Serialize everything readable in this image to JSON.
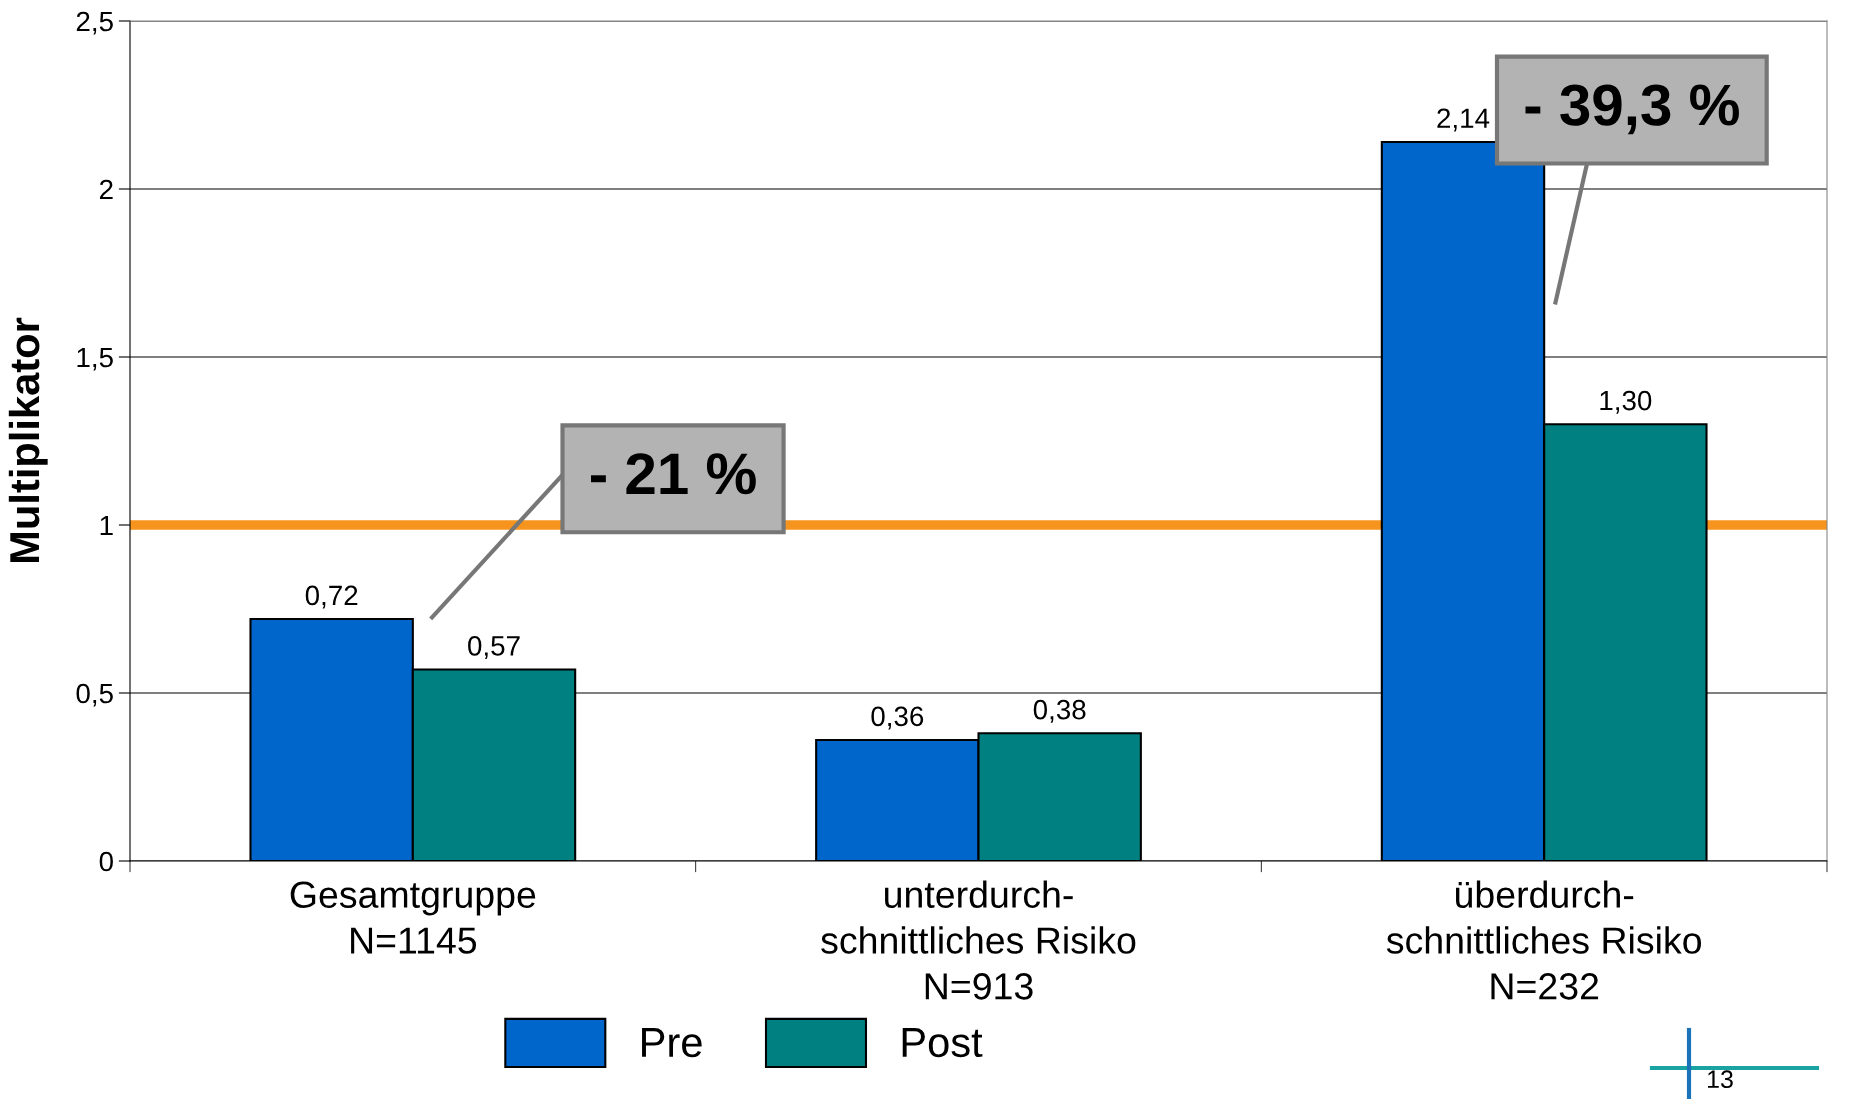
{
  "chart_data": {
    "type": "bar",
    "ylabel": "Multiplikator",
    "categories": [
      "Gesamtgruppe\nN=1145",
      "unterdurch-\nschnittliches Risiko\nN=913",
      "überdurch-\nschnittliches Risiko\nN=232"
    ],
    "series": [
      {
        "name": "Pre",
        "color": "#0066cc",
        "values": [
          0.72,
          0.36,
          2.14
        ],
        "value_labels": [
          "0,72",
          "0,36",
          "2,14"
        ]
      },
      {
        "name": "Post",
        "color": "#008080",
        "values": [
          0.57,
          0.38,
          1.3
        ],
        "value_labels": [
          "0,57",
          "0,38",
          "1,30"
        ]
      }
    ],
    "ylim": [
      0,
      2.5
    ],
    "yticks": [
      0,
      {
        "value": 0.5,
        "label": "0,5"
      },
      1,
      {
        "value": 1.5,
        "label": "1,5"
      },
      2,
      {
        "value": 2.5,
        "label": "2,5"
      }
    ],
    "grid": "y",
    "legend": "bottom",
    "ref_lines": [
      {
        "axis": "y",
        "value": 1,
        "color": "#f7941d"
      }
    ],
    "annotations": [
      "- 21 %",
      "- 39,3 %",
      "13"
    ]
  }
}
